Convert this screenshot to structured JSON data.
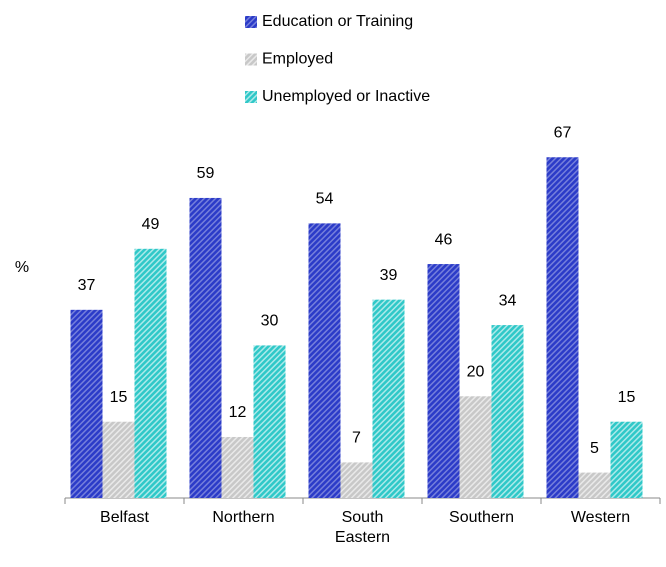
{
  "chart_data": {
    "type": "bar",
    "y_label": "%",
    "categories": [
      "Belfast",
      "Northern",
      "South Eastern",
      "Southern",
      "Western"
    ],
    "series": [
      {
        "name": "Education or Training",
        "color": "#2b3bc8",
        "values": [
          37,
          59,
          54,
          46,
          67
        ]
      },
      {
        "name": "Employed",
        "color": "#c8c8c8",
        "values": [
          15,
          12,
          7,
          20,
          5
        ]
      },
      {
        "name": "Unemployed or Inactive",
        "color": "#2fc8c8",
        "values": [
          49,
          30,
          39,
          34,
          15
        ]
      }
    ],
    "ylim": [
      0,
      70
    ],
    "legend": "top"
  }
}
